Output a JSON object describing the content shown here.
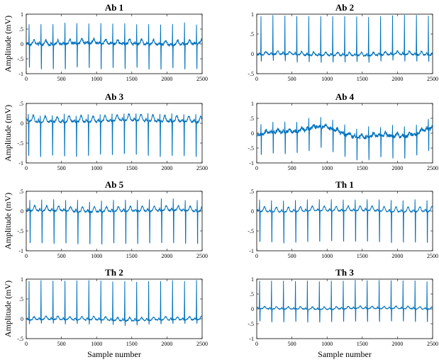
{
  "chart_data": [
    {
      "type": "line",
      "title": "Ab 1",
      "ylabel": "Amplitude (mV)",
      "xlabel": "",
      "xlim": [
        0,
        2500
      ],
      "ylim": [
        -1,
        1
      ],
      "xticks": [
        0,
        500,
        1000,
        1500,
        2000,
        2500
      ],
      "yticks": [
        -1,
        -0.5,
        0,
        0.5,
        1
      ],
      "grid": false,
      "color": "#0072BD",
      "waveform": {
        "baseline": 0.0,
        "r_peak": 0.7,
        "s_trough": -0.95,
        "t_wave": 0.15,
        "noise": 0.08,
        "wander": 0.03
      },
      "r_peaks_x": [
        40,
        210,
        380,
        550,
        720,
        890,
        1060,
        1230,
        1400,
        1570,
        1740,
        1910,
        2080,
        2250,
        2420
      ]
    },
    {
      "type": "line",
      "title": "Ab 2",
      "ylabel": "",
      "xlabel": "",
      "xlim": [
        0,
        2500
      ],
      "ylim": [
        -0.5,
        1
      ],
      "xticks": [
        0,
        500,
        1000,
        1500,
        2000,
        2500
      ],
      "yticks": [
        -0.5,
        0,
        0.5,
        1
      ],
      "grid": false,
      "color": "#0072BD",
      "waveform": {
        "baseline": -0.03,
        "r_peak": 0.95,
        "s_trough": -0.22,
        "t_wave": 0.08,
        "noise": 0.04,
        "wander": 0.02
      },
      "r_peaks_x": [
        60,
        230,
        400,
        570,
        740,
        910,
        1080,
        1250,
        1420,
        1590,
        1760,
        1930,
        2100,
        2270,
        2440
      ]
    },
    {
      "type": "line",
      "title": "Ab 3",
      "ylabel": "Amplitude (mV)",
      "xlabel": "",
      "xlim": [
        0,
        2500
      ],
      "ylim": [
        -1,
        0.5
      ],
      "xticks": [
        0,
        500,
        1000,
        1500,
        2000,
        2500
      ],
      "yticks": [
        -1,
        -0.5,
        0,
        0.5
      ],
      "grid": false,
      "color": "#0072BD",
      "waveform": {
        "baseline": 0.05,
        "r_peak": 0.25,
        "s_trough": -0.95,
        "t_wave": 0.15,
        "noise": 0.05,
        "wander": 0.03
      },
      "r_peaks_x": [
        30,
        200,
        370,
        540,
        710,
        880,
        1050,
        1220,
        1390,
        1560,
        1730,
        1900,
        2070,
        2240,
        2410
      ]
    },
    {
      "type": "line",
      "title": "Ab 4",
      "ylabel": "",
      "xlabel": "",
      "xlim": [
        0,
        2500
      ],
      "ylim": [
        -1,
        1
      ],
      "xticks": [
        0,
        500,
        1000,
        1500,
        2000,
        2500
      ],
      "yticks": [
        -1,
        -0.5,
        0,
        0.5,
        1
      ],
      "grid": false,
      "color": "#0072BD",
      "waveform": {
        "baseline": 0.0,
        "r_peak": 0.35,
        "s_trough": -0.85,
        "t_wave": 0.1,
        "noise": 0.1,
        "wander": 0.22
      },
      "r_peaks_x": [
        60,
        230,
        400,
        570,
        740,
        910,
        1080,
        1250,
        1420,
        1590,
        1760,
        1930,
        2100,
        2270,
        2440
      ]
    },
    {
      "type": "line",
      "title": "Ab 5",
      "ylabel": "Amplitude (mV)",
      "xlabel": "",
      "xlim": [
        0,
        2500
      ],
      "ylim": [
        -1,
        0.5
      ],
      "xticks": [
        0,
        500,
        1000,
        1500,
        2000,
        2500
      ],
      "yticks": [
        -1,
        -0.5,
        0,
        0.5
      ],
      "grid": false,
      "color": "#0072BD",
      "waveform": {
        "baseline": 0.0,
        "r_peak": 0.3,
        "s_trough": -0.95,
        "t_wave": 0.12,
        "noise": 0.04,
        "wander": 0.02
      },
      "r_peaks_x": [
        50,
        220,
        390,
        560,
        730,
        900,
        1070,
        1240,
        1410,
        1580,
        1750,
        1920,
        2090,
        2260,
        2430
      ]
    },
    {
      "type": "line",
      "title": "Th 1",
      "ylabel": "",
      "xlabel": "",
      "xlim": [
        0,
        2500
      ],
      "ylim": [
        -1,
        0.5
      ],
      "xticks": [
        0,
        500,
        1000,
        1500,
        2000,
        2500
      ],
      "yticks": [
        -1,
        -0.5,
        0,
        0.5
      ],
      "grid": false,
      "color": "#0072BD",
      "waveform": {
        "baseline": 0.0,
        "r_peak": 0.3,
        "s_trough": -0.9,
        "t_wave": 0.12,
        "noise": 0.03,
        "wander": 0.02
      },
      "r_peaks_x": [
        40,
        210,
        380,
        550,
        720,
        890,
        1060,
        1230,
        1400,
        1570,
        1740,
        1910,
        2080,
        2250,
        2420
      ]
    },
    {
      "type": "line",
      "title": "Th 2",
      "ylabel": "Amplitude (mV)",
      "xlabel": "Sample number",
      "xlim": [
        0,
        2500
      ],
      "ylim": [
        -0.5,
        1
      ],
      "xticks": [
        0,
        500,
        1000,
        1500,
        2000,
        2500
      ],
      "yticks": [
        -0.5,
        0,
        0.5,
        1
      ],
      "grid": false,
      "color": "#0072BD",
      "waveform": {
        "baseline": -0.03,
        "r_peak": 0.95,
        "s_trough": -0.15,
        "t_wave": 0.08,
        "noise": 0.03,
        "wander": 0.02
      },
      "r_peaks_x": [
        40,
        210,
        380,
        550,
        720,
        890,
        1060,
        1230,
        1400,
        1570,
        1740,
        1910,
        2080,
        2250,
        2420
      ]
    },
    {
      "type": "line",
      "title": "Th 3",
      "ylabel": "",
      "xlabel": "Sample number",
      "xlim": [
        0,
        2500
      ],
      "ylim": [
        -1,
        1
      ],
      "xticks": [
        0,
        500,
        1000,
        1500,
        2000,
        2500
      ],
      "yticks": [
        -1,
        -0.5,
        0,
        0.5,
        1
      ],
      "grid": false,
      "color": "#0072BD",
      "waveform": {
        "baseline": 0.0,
        "r_peak": 0.95,
        "s_trough": -0.5,
        "t_wave": 0.08,
        "noise": 0.03,
        "wander": 0.02
      },
      "r_peaks_x": [
        40,
        210,
        380,
        550,
        720,
        890,
        1060,
        1230,
        1400,
        1570,
        1740,
        1910,
        2080,
        2250,
        2420
      ]
    }
  ]
}
